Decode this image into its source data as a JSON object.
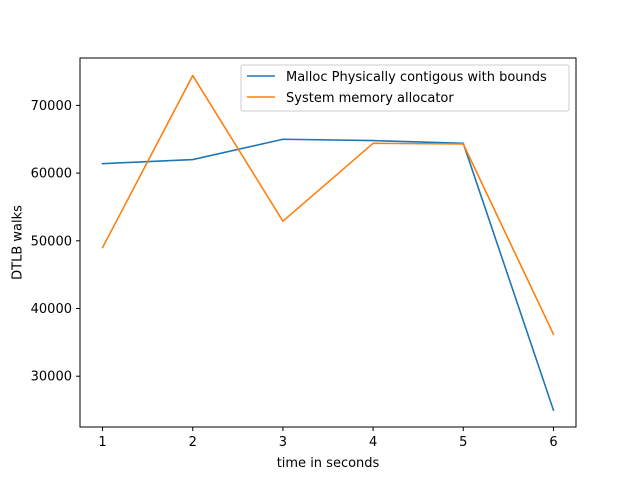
{
  "chart_data": {
    "type": "line",
    "title": "",
    "xlabel": "time in seconds",
    "ylabel": "DTLB walks",
    "x": [
      1,
      2,
      3,
      4,
      5,
      6
    ],
    "xticks": [
      "1",
      "2",
      "3",
      "4",
      "5",
      "6"
    ],
    "yticks": [
      30000,
      40000,
      50000,
      60000,
      70000
    ],
    "ytick_labels": [
      "30000",
      "40000",
      "50000",
      "60000",
      "70000"
    ],
    "xlim": [
      0.75,
      6.25
    ],
    "ylim": [
      22500,
      77000
    ],
    "grid": false,
    "legend_position": "upper-right",
    "series": [
      {
        "name": "Malloc Physically contigous with bounds",
        "color": "#1f77b4",
        "values": [
          61400,
          62000,
          65000,
          64800,
          64400,
          25000
        ]
      },
      {
        "name": "System memory allocator",
        "color": "#ff7f0e",
        "values": [
          49000,
          74400,
          52900,
          64400,
          64300,
          36200
        ]
      }
    ]
  }
}
